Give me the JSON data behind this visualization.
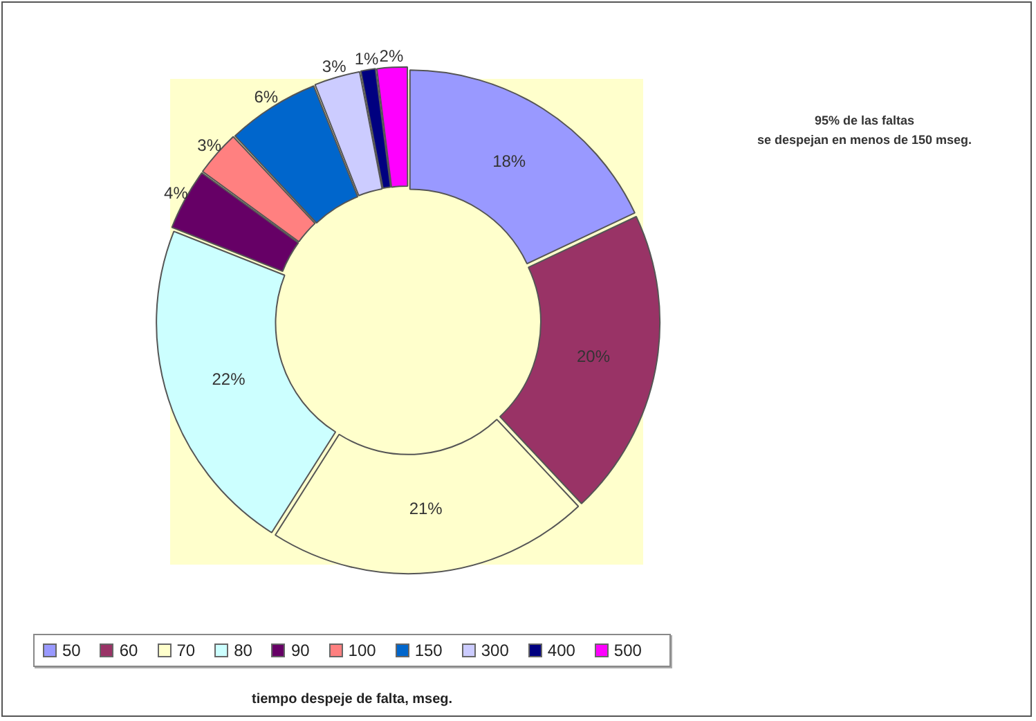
{
  "chart_data": {
    "type": "donut",
    "categories": [
      "50",
      "60",
      "70",
      "80",
      "90",
      "100",
      "150",
      "300",
      "400",
      "500"
    ],
    "values": [
      18,
      20,
      21,
      22,
      4,
      3,
      6,
      3,
      1,
      2
    ],
    "colors": [
      "#9999ff",
      "#993366",
      "#ffffcc",
      "#ccffff",
      "#660066",
      "#ff8080",
      "#0066cc",
      "#ccccff",
      "#000080",
      "#ff00ff"
    ],
    "value_labels": [
      "18%",
      "20%",
      "21%",
      "22%",
      "4%",
      "3%",
      "6%",
      "3%",
      "1%",
      "2%"
    ],
    "legend": "bottom",
    "legend_title": "tiempo despeje de falta, mseg.",
    "annotations": [
      "95% de las faltas\nse despejan en menos de 150 mseg."
    ]
  }
}
